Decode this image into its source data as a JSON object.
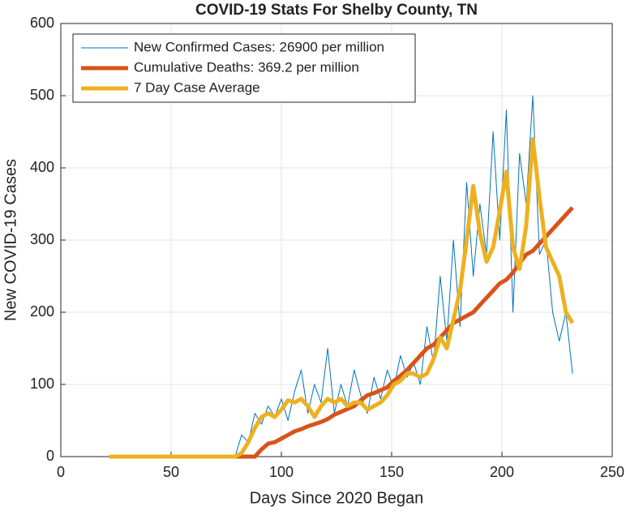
{
  "chart_data": {
    "type": "line",
    "title": "COVID-19 Stats For Shelby County, TN",
    "xlabel": "Days Since 2020 Began",
    "ylabel": "New COVID-19 Cases",
    "xlim": [
      0,
      250
    ],
    "xticks": [
      0,
      50,
      100,
      150,
      200,
      250
    ],
    "ylim": [
      0,
      600
    ],
    "yticks": [
      0,
      100,
      200,
      300,
      400,
      500,
      600
    ],
    "grid": true,
    "legend": "upper left",
    "x": [
      22,
      25,
      28,
      31,
      34,
      37,
      40,
      43,
      46,
      49,
      52,
      55,
      58,
      61,
      64,
      67,
      70,
      73,
      76,
      79,
      82,
      85,
      88,
      91,
      94,
      97,
      100,
      103,
      106,
      109,
      112,
      115,
      118,
      121,
      124,
      127,
      130,
      133,
      136,
      139,
      142,
      145,
      148,
      151,
      154,
      157,
      160,
      163,
      166,
      169,
      172,
      175,
      178,
      181,
      184,
      187,
      190,
      193,
      196,
      199,
      202,
      205,
      208,
      211,
      214,
      217,
      220,
      223,
      226,
      229,
      232
    ],
    "series": [
      {
        "name": "New Confirmed Cases: 26900 per million",
        "color": "#0072bd",
        "width": 1,
        "values": [
          0,
          0,
          0,
          0,
          0,
          0,
          0,
          0,
          0,
          0,
          0,
          0,
          0,
          0,
          0,
          0,
          0,
          0,
          0,
          0,
          30,
          20,
          60,
          45,
          70,
          55,
          80,
          50,
          90,
          120,
          60,
          100,
          75,
          150,
          60,
          100,
          70,
          120,
          85,
          60,
          110,
          80,
          120,
          95,
          140,
          110,
          130,
          100,
          180,
          130,
          250,
          160,
          300,
          180,
          380,
          250,
          350,
          280,
          450,
          300,
          480,
          200,
          420,
          350,
          500,
          280,
          300,
          200,
          160,
          200,
          115
        ]
      },
      {
        "name": "Cumulative Deaths: 369.2 per million",
        "color": "#d95319",
        "width": 5,
        "values": [
          0,
          0,
          0,
          0,
          0,
          0,
          0,
          0,
          0,
          0,
          0,
          0,
          0,
          0,
          0,
          0,
          0,
          0,
          0,
          0,
          0,
          0,
          0,
          10,
          18,
          20,
          25,
          30,
          35,
          38,
          42,
          45,
          48,
          52,
          58,
          62,
          66,
          70,
          78,
          85,
          88,
          92,
          96,
          105,
          112,
          120,
          130,
          140,
          150,
          155,
          165,
          175,
          185,
          190,
          195,
          200,
          210,
          220,
          230,
          240,
          245,
          255,
          268,
          280,
          285,
          295,
          305,
          315,
          325,
          335,
          345
        ]
      },
      {
        "name": "7 Day Case Average",
        "color": "#edb120",
        "width": 5,
        "values": [
          0,
          0,
          0,
          0,
          0,
          0,
          0,
          0,
          0,
          0,
          0,
          0,
          0,
          0,
          0,
          0,
          0,
          0,
          0,
          0,
          5,
          20,
          40,
          55,
          60,
          55,
          65,
          78,
          75,
          80,
          70,
          55,
          70,
          80,
          75,
          80,
          70,
          75,
          75,
          65,
          70,
          75,
          85,
          100,
          105,
          115,
          115,
          110,
          115,
          135,
          165,
          150,
          190,
          230,
          300,
          375,
          310,
          270,
          290,
          340,
          395,
          290,
          260,
          320,
          440,
          360,
          290,
          270,
          250,
          200,
          185
        ]
      }
    ]
  }
}
